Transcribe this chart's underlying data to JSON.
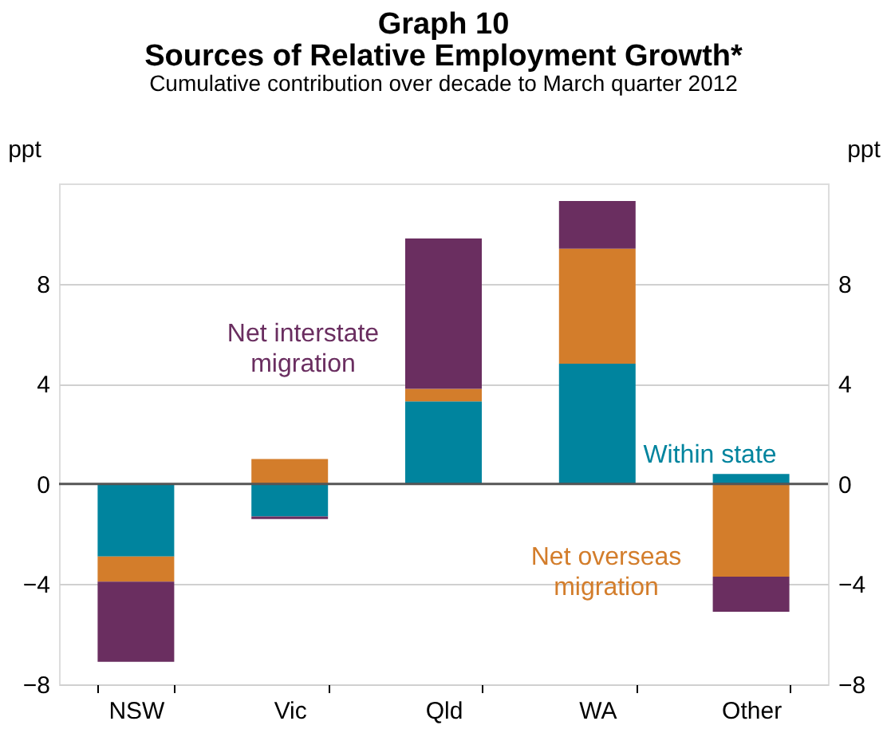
{
  "chart_data": {
    "type": "bar",
    "title": "Graph 10\nSources of Relative Employment Growth*",
    "subtitle": "Cumulative contribution over decade to March quarter 2012",
    "ylabel": "ppt",
    "y2label": "ppt",
    "categories": [
      "NSW",
      "Vic",
      "Qld",
      "WA",
      "Other"
    ],
    "stacked": true,
    "series": [
      {
        "name": "Within state",
        "color": "#00849e",
        "values": [
          -2.9,
          -1.3,
          3.3,
          4.8,
          0.4
        ]
      },
      {
        "name": "Net overseas migration",
        "color": "#d37d2b",
        "values": [
          -1.0,
          1.0,
          0.5,
          4.6,
          -3.7
        ]
      },
      {
        "name": "Net interstate migration",
        "color": "#6a2e60",
        "values": [
          -3.2,
          -0.1,
          6.0,
          1.9,
          -1.4
        ]
      }
    ],
    "ylim": [
      -8,
      12
    ],
    "yticks": [
      -8,
      -4,
      0,
      4,
      8
    ],
    "y2lim": [
      -8,
      12
    ],
    "y2ticks": [
      -8,
      -4,
      0,
      4,
      8
    ],
    "grid": "y",
    "legend": false
  }
}
